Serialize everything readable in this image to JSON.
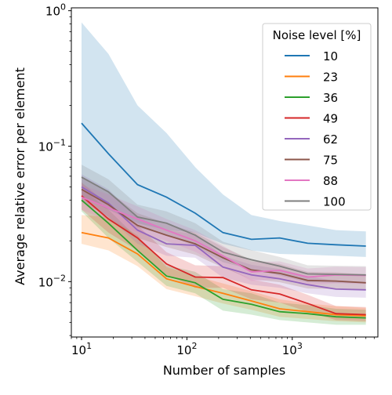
{
  "chart_data": {
    "type": "line",
    "xscale": "log",
    "yscale": "log",
    "xlabel": "Number of samples",
    "ylabel": "Average relative error per element",
    "xlim": [
      8,
      6500
    ],
    "ylim": [
      0.0039,
      1.05
    ],
    "xticks": [
      {
        "value": 10,
        "base": "10",
        "exp": "1"
      },
      {
        "value": 100,
        "base": "10",
        "exp": "2"
      },
      {
        "value": 1000,
        "base": "10",
        "exp": "3"
      }
    ],
    "yticks": [
      {
        "value": 0.01,
        "base": "10",
        "exp": "−2"
      },
      {
        "value": 0.1,
        "base": "10",
        "exp": "−1"
      },
      {
        "value": 1,
        "base": "10",
        "exp": "0"
      }
    ],
    "grid": false,
    "legend": {
      "title": "Noise level [%]",
      "position": "top-right"
    },
    "x": [
      10,
      18,
      34,
      64,
      120,
      220,
      410,
      760,
      1400,
      2600,
      5000
    ],
    "series": [
      {
        "name": "10",
        "color": "#1f77b4",
        "values": [
          0.148,
          0.088,
          0.052,
          0.042,
          0.032,
          0.023,
          0.0205,
          0.021,
          0.0192,
          0.0187,
          0.0183
        ],
        "lower": [
          0.043,
          0.034,
          0.027,
          0.024,
          0.023,
          0.019,
          0.017,
          0.016,
          0.0158,
          0.0155,
          0.0152
        ],
        "upper": [
          0.82,
          0.48,
          0.2,
          0.125,
          0.07,
          0.044,
          0.031,
          0.028,
          0.026,
          0.024,
          0.0235
        ]
      },
      {
        "name": "23",
        "color": "#ff7f0e",
        "values": [
          0.023,
          0.021,
          0.016,
          0.0105,
          0.0092,
          0.0082,
          0.0072,
          0.0063,
          0.006,
          0.0057,
          0.0056
        ],
        "lower": [
          0.019,
          0.017,
          0.013,
          0.0088,
          0.0078,
          0.0069,
          0.0062,
          0.0055,
          0.0053,
          0.0051,
          0.005
        ],
        "upper": [
          0.031,
          0.03,
          0.022,
          0.0128,
          0.011,
          0.0097,
          0.0085,
          0.0074,
          0.0069,
          0.0066,
          0.0064
        ]
      },
      {
        "name": "36",
        "color": "#2ca02c",
        "values": [
          0.04,
          0.027,
          0.017,
          0.011,
          0.0098,
          0.0074,
          0.0068,
          0.006,
          0.0058,
          0.0055,
          0.0054
        ],
        "lower": [
          0.033,
          0.021,
          0.014,
          0.0093,
          0.0082,
          0.0061,
          0.0057,
          0.0052,
          0.005,
          0.0048,
          0.0048
        ],
        "upper": [
          0.049,
          0.034,
          0.021,
          0.0132,
          0.0118,
          0.0088,
          0.0082,
          0.007,
          0.0067,
          0.0063,
          0.0062
        ]
      },
      {
        "name": "49",
        "color": "#d62728",
        "values": [
          0.043,
          0.029,
          0.021,
          0.0135,
          0.0108,
          0.0107,
          0.0087,
          0.0081,
          0.0069,
          0.0058,
          0.0057
        ],
        "lower": [
          0.034,
          0.023,
          0.017,
          0.0112,
          0.009,
          0.009,
          0.0074,
          0.007,
          0.006,
          0.0052,
          0.0051
        ],
        "upper": [
          0.054,
          0.037,
          0.026,
          0.0165,
          0.0132,
          0.013,
          0.0104,
          0.0095,
          0.008,
          0.0066,
          0.0065
        ]
      },
      {
        "name": "62",
        "color": "#9467bd",
        "values": [
          0.05,
          0.038,
          0.024,
          0.019,
          0.0185,
          0.0128,
          0.0112,
          0.0105,
          0.0095,
          0.0088,
          0.0087
        ],
        "lower": [
          0.041,
          0.03,
          0.019,
          0.0155,
          0.015,
          0.0107,
          0.0095,
          0.009,
          0.0082,
          0.0077,
          0.0076
        ],
        "upper": [
          0.062,
          0.048,
          0.03,
          0.024,
          0.0225,
          0.0155,
          0.0133,
          0.0124,
          0.011,
          0.0101,
          0.0099
        ]
      },
      {
        "name": "75",
        "color": "#8c564b",
        "values": [
          0.048,
          0.037,
          0.026,
          0.022,
          0.019,
          0.015,
          0.0122,
          0.0115,
          0.0102,
          0.0101,
          0.0098
        ],
        "lower": [
          0.039,
          0.03,
          0.021,
          0.018,
          0.0158,
          0.0127,
          0.0104,
          0.0099,
          0.0089,
          0.0088,
          0.0086
        ],
        "upper": [
          0.06,
          0.046,
          0.032,
          0.027,
          0.023,
          0.018,
          0.0145,
          0.0135,
          0.0118,
          0.0117,
          0.0113
        ]
      },
      {
        "name": "88",
        "color": "#e377c2",
        "values": [
          0.042,
          0.035,
          0.029,
          0.024,
          0.02,
          0.0155,
          0.0118,
          0.0121,
          0.0108,
          0.0112,
          0.0111
        ],
        "lower": [
          0.034,
          0.028,
          0.023,
          0.02,
          0.0166,
          0.0131,
          0.0101,
          0.0104,
          0.0094,
          0.0097,
          0.0096
        ],
        "upper": [
          0.052,
          0.044,
          0.036,
          0.029,
          0.024,
          0.0184,
          0.014,
          0.0141,
          0.0125,
          0.0129,
          0.0128
        ]
      },
      {
        "name": "100",
        "color": "#7f7f7f",
        "values": [
          0.059,
          0.046,
          0.03,
          0.027,
          0.022,
          0.0165,
          0.0145,
          0.013,
          0.0114,
          0.0113,
          0.0112
        ],
        "lower": [
          0.048,
          0.037,
          0.025,
          0.022,
          0.0183,
          0.0139,
          0.0123,
          0.0111,
          0.0099,
          0.0098,
          0.0097
        ],
        "upper": [
          0.073,
          0.057,
          0.037,
          0.033,
          0.027,
          0.0197,
          0.0171,
          0.0152,
          0.0132,
          0.0131,
          0.013
        ]
      }
    ]
  }
}
